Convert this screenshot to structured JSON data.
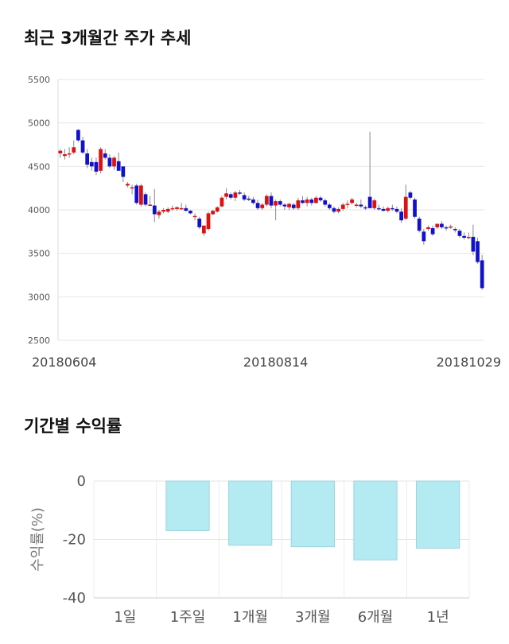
{
  "sections": {
    "stock_title": "최근 3개월간 주가 추세",
    "returns_title": "기간별 수익률"
  },
  "chart_data": [
    {
      "type": "candlestick",
      "title": "최근 3개월간 주가 추세",
      "ylim": [
        2500,
        5500
      ],
      "yticks": [
        2500,
        3000,
        3500,
        4000,
        4500,
        5000,
        5500
      ],
      "xtick_labels": [
        "20180604",
        "20180814",
        "20181029"
      ],
      "xtick_index": [
        0,
        48,
        97
      ],
      "grid": true,
      "colors": {
        "up": "#dd1111",
        "down": "#1111cc",
        "wick": "#888888"
      },
      "ohlc": [
        [
          4650,
          4700,
          4600,
          4680
        ],
        [
          4620,
          4700,
          4580,
          4640
        ],
        [
          4640,
          4720,
          4600,
          4650
        ],
        [
          4660,
          4800,
          4640,
          4720
        ],
        [
          4920,
          4930,
          4780,
          4800
        ],
        [
          4800,
          4840,
          4640,
          4660
        ],
        [
          4650,
          4700,
          4480,
          4520
        ],
        [
          4550,
          4600,
          4450,
          4500
        ],
        [
          4550,
          4600,
          4400,
          4440
        ],
        [
          4450,
          4720,
          4420,
          4700
        ],
        [
          4650,
          4700,
          4580,
          4600
        ],
        [
          4600,
          4640,
          4480,
          4500
        ],
        [
          4500,
          4620,
          4460,
          4600
        ],
        [
          4560,
          4660,
          4450,
          4450
        ],
        [
          4500,
          4500,
          4320,
          4380
        ],
        [
          4280,
          4320,
          4260,
          4300
        ],
        [
          4250,
          4290,
          4180,
          4260
        ],
        [
          4280,
          4300,
          4060,
          4080
        ],
        [
          4060,
          4300,
          4040,
          4280
        ],
        [
          4180,
          4200,
          4040,
          4060
        ],
        [
          4060,
          4160,
          4050,
          4060
        ],
        [
          4050,
          4240,
          3860,
          3950
        ],
        [
          3940,
          4000,
          3900,
          3980
        ],
        [
          3980,
          4020,
          3960,
          4000
        ],
        [
          3980,
          4030,
          3960,
          4010
        ],
        [
          4010,
          4050,
          3990,
          4020
        ],
        [
          4010,
          4040,
          3990,
          4030
        ],
        [
          4020,
          4080,
          4000,
          4020
        ],
        [
          4020,
          4060,
          3980,
          3990
        ],
        [
          3990,
          4000,
          3950,
          3960
        ],
        [
          3920,
          3960,
          3880,
          3930
        ],
        [
          3900,
          3920,
          3780,
          3800
        ],
        [
          3730,
          3800,
          3700,
          3820
        ],
        [
          3780,
          3980,
          3760,
          3960
        ],
        [
          3950,
          4000,
          3940,
          3990
        ],
        [
          3980,
          4040,
          3970,
          4030
        ],
        [
          4040,
          4160,
          4030,
          4140
        ],
        [
          4150,
          4250,
          4120,
          4190
        ],
        [
          4180,
          4200,
          4120,
          4140
        ],
        [
          4140,
          4220,
          4100,
          4200
        ],
        [
          4200,
          4230,
          4170,
          4190
        ],
        [
          4170,
          4200,
          4100,
          4120
        ],
        [
          4130,
          4160,
          4100,
          4120
        ],
        [
          4120,
          4150,
          4060,
          4080
        ],
        [
          4080,
          4120,
          4000,
          4020
        ],
        [
          4020,
          4080,
          4000,
          4060
        ],
        [
          4060,
          4180,
          4040,
          4160
        ],
        [
          4160,
          4200,
          4020,
          4050
        ],
        [
          4050,
          4120,
          3880,
          4100
        ],
        [
          4100,
          4120,
          4040,
          4060
        ],
        [
          4060,
          4080,
          4000,
          4040
        ],
        [
          4030,
          4080,
          4000,
          4070
        ],
        [
          4060,
          4080,
          4000,
          4020
        ],
        [
          4020,
          4140,
          4000,
          4110
        ],
        [
          4110,
          4160,
          4070,
          4080
        ],
        [
          4080,
          4150,
          4040,
          4120
        ],
        [
          4120,
          4140,
          4050,
          4080
        ],
        [
          4080,
          4160,
          4070,
          4140
        ],
        [
          4140,
          4160,
          4090,
          4110
        ],
        [
          4110,
          4130,
          4040,
          4060
        ],
        [
          4060,
          4080,
          4000,
          4020
        ],
        [
          4020,
          4040,
          3960,
          3980
        ],
        [
          3980,
          4030,
          3960,
          4010
        ],
        [
          4010,
          4080,
          3990,
          4060
        ],
        [
          4060,
          4110,
          4020,
          4070
        ],
        [
          4080,
          4140,
          4060,
          4120
        ],
        [
          4050,
          4080,
          4030,
          4060
        ],
        [
          4060,
          4120,
          4020,
          4040
        ],
        [
          4030,
          4050,
          4000,
          4020
        ],
        [
          4150,
          4900,
          4020,
          4020
        ],
        [
          4020,
          4130,
          4000,
          4110
        ],
        [
          4020,
          4060,
          3990,
          4010
        ],
        [
          4010,
          4040,
          3980,
          3990
        ],
        [
          3990,
          4040,
          3970,
          4020
        ],
        [
          4020,
          4060,
          3990,
          4010
        ],
        [
          4010,
          4040,
          3960,
          3980
        ],
        [
          3980,
          4020,
          3850,
          3880
        ],
        [
          3900,
          4290,
          3880,
          4150
        ],
        [
          4200,
          4220,
          4120,
          4140
        ],
        [
          4120,
          4140,
          3900,
          3920
        ],
        [
          3900,
          3920,
          3740,
          3760
        ],
        [
          3750,
          3780,
          3600,
          3640
        ],
        [
          3780,
          3820,
          3760,
          3800
        ],
        [
          3790,
          3820,
          3700,
          3720
        ],
        [
          3800,
          3840,
          3780,
          3840
        ],
        [
          3840,
          3870,
          3780,
          3800
        ],
        [
          3800,
          3820,
          3760,
          3790
        ],
        [
          3800,
          3830,
          3780,
          3810
        ],
        [
          3780,
          3800,
          3740,
          3770
        ],
        [
          3760,
          3780,
          3680,
          3700
        ],
        [
          3700,
          3740,
          3660,
          3680
        ],
        [
          3680,
          3740,
          3660,
          3690
        ],
        [
          3690,
          3830,
          3480,
          3520
        ],
        [
          3640,
          3680,
          3380,
          3400
        ],
        [
          3420,
          3480,
          3080,
          3100
        ]
      ]
    },
    {
      "type": "bar",
      "title": "기간별 수익률",
      "ylabel": "수익률(%)",
      "categories": [
        "1일",
        "1주일",
        "1개월",
        "3개월",
        "6개월",
        "1년"
      ],
      "values": [
        0,
        -17,
        -22,
        -22.5,
        -27,
        -23
      ],
      "ylim": [
        -40,
        0
      ],
      "yticks": [
        0,
        -20,
        -40
      ],
      "grid": true,
      "colors": {
        "bar_fill": "#b4ebf2",
        "bar_stroke": "#9fd3dc"
      }
    }
  ]
}
